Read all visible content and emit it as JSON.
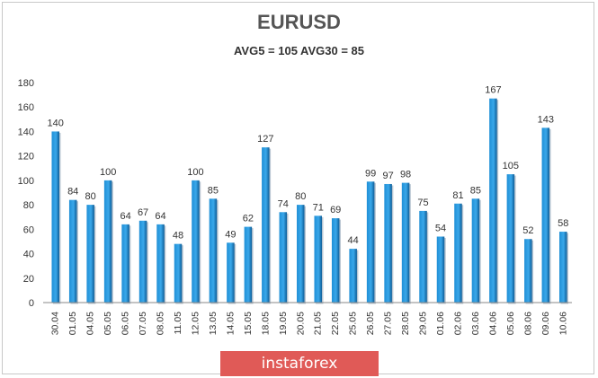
{
  "header": {
    "title": "EURUSD",
    "subtitle": "AVG5 = 105 AVG30 = 85"
  },
  "brand": {
    "label": "instaforex"
  },
  "colors": {
    "bar": "#1f8fd6",
    "bar_dark": "#0d5d98",
    "axis": "#888888",
    "brand": "#e05a57"
  },
  "chart_data": {
    "type": "bar",
    "title": "EURUSD",
    "subtitle": "AVG5 = 105 AVG30 = 85",
    "categories": [
      "30.04",
      "01.05",
      "04.05",
      "05.05",
      "06.05",
      "07.05",
      "08.05",
      "11.05",
      "12.05",
      "13.05",
      "14.05",
      "15.05",
      "18.05",
      "19.05",
      "20.05",
      "21.05",
      "22.05",
      "25.05",
      "26.05",
      "27.05",
      "28.05",
      "29.05",
      "01.06",
      "02.06",
      "03.06",
      "04.06",
      "05.06",
      "08.06",
      "09.06",
      "10.06"
    ],
    "values": [
      140,
      84,
      80,
      100,
      64,
      67,
      64,
      48,
      100,
      85,
      49,
      62,
      127,
      74,
      80,
      71,
      69,
      44,
      99,
      97,
      98,
      75,
      54,
      81,
      85,
      167,
      105,
      52,
      143,
      58
    ],
    "ylim": [
      0,
      180
    ],
    "yticks": [
      0,
      20,
      40,
      60,
      80,
      100,
      120,
      140,
      160,
      180
    ],
    "grid": false,
    "data_labels": true
  }
}
